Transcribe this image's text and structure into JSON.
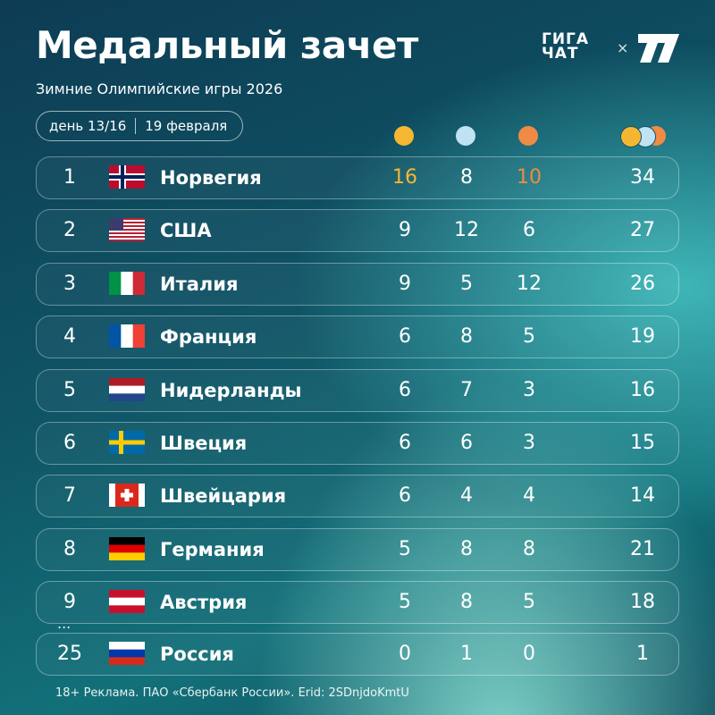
{
  "header": {
    "title": "Медальный зачет",
    "subtitle": "Зимние Олимпийские игры 2026",
    "day": "день 13/16",
    "date": "19 февраля",
    "logo_top": "ГИГА",
    "logo_bottom": "ЧАТ",
    "logo_separator": "×"
  },
  "table": {
    "rows": [
      {
        "rank": 1,
        "country": "Норвегия",
        "gold": 16,
        "silver": 8,
        "bronze": 10,
        "total": 34
      },
      {
        "rank": 2,
        "country": "США",
        "gold": 9,
        "silver": 12,
        "bronze": 6,
        "total": 27
      },
      {
        "rank": 3,
        "country": "Италия",
        "gold": 9,
        "silver": 5,
        "bronze": 12,
        "total": 26
      },
      {
        "rank": 4,
        "country": "Франция",
        "gold": 6,
        "silver": 8,
        "bronze": 5,
        "total": 19
      },
      {
        "rank": 5,
        "country": "Нидерланды",
        "gold": 6,
        "silver": 7,
        "bronze": 3,
        "total": 16
      },
      {
        "rank": 6,
        "country": "Швеция",
        "gold": 6,
        "silver": 6,
        "bronze": 3,
        "total": 15
      },
      {
        "rank": 7,
        "country": "Швейцария",
        "gold": 6,
        "silver": 4,
        "bronze": 4,
        "total": 14
      },
      {
        "rank": 8,
        "country": "Германия",
        "gold": 5,
        "silver": 8,
        "bronze": 8,
        "total": 21
      },
      {
        "rank": 9,
        "country": "Австрия",
        "gold": 5,
        "silver": 8,
        "bronze": 5,
        "total": 18
      },
      {
        "rank": 25,
        "country": "Россия",
        "gold": 0,
        "silver": 1,
        "bronze": 0,
        "total": 1
      }
    ],
    "ellipsis": "..."
  },
  "footer": "18+ Реклама. ПАО «Сбербанк России». Erid: 2SDnjdoKmtU"
}
